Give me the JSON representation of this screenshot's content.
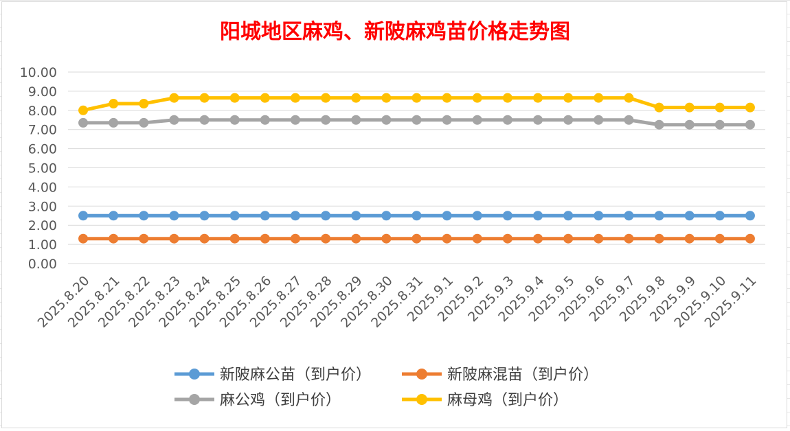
{
  "chart_data": {
    "type": "line",
    "title": "阳城地区麻鸡、新陂麻鸡苗价格走势图",
    "xlabel": "",
    "ylabel": "",
    "ylim": [
      0,
      10
    ],
    "yticks": [
      "0.00",
      "1.00",
      "2.00",
      "3.00",
      "4.00",
      "5.00",
      "6.00",
      "7.00",
      "8.00",
      "9.00",
      "10.00"
    ],
    "categories": [
      "2025.8.20",
      "2025.8.21",
      "2025.8.22",
      "2025.8.23",
      "2025.8.24",
      "2025.8.25",
      "2025.8.26",
      "2025.8.27",
      "2025.8.28",
      "2025.8.29",
      "2025.8.30",
      "2025.8.31",
      "2025.9.1",
      "2025.9.2",
      "2025.9.3",
      "2025.9.4",
      "2025.9.5",
      "2025.9.6",
      "2025.9.7",
      "2025.9.8",
      "2025.9.9",
      "2025.9.10",
      "2025.9.11"
    ],
    "grid": true,
    "legend_position": "bottom",
    "series": [
      {
        "name": "新陂麻公苗（到户价）",
        "color": "#5b9bd5",
        "values": [
          2.5,
          2.5,
          2.5,
          2.5,
          2.5,
          2.5,
          2.5,
          2.5,
          2.5,
          2.5,
          2.5,
          2.5,
          2.5,
          2.5,
          2.5,
          2.5,
          2.5,
          2.5,
          2.5,
          2.5,
          2.5,
          2.5,
          2.5
        ]
      },
      {
        "name": "新陂麻混苗（到户价）",
        "color": "#ed7d31",
        "values": [
          1.3,
          1.3,
          1.3,
          1.3,
          1.3,
          1.3,
          1.3,
          1.3,
          1.3,
          1.3,
          1.3,
          1.3,
          1.3,
          1.3,
          1.3,
          1.3,
          1.3,
          1.3,
          1.3,
          1.3,
          1.3,
          1.3,
          1.3
        ]
      },
      {
        "name": "麻公鸡（到户价）",
        "color": "#a5a5a5",
        "values": [
          7.35,
          7.35,
          7.35,
          7.5,
          7.5,
          7.5,
          7.5,
          7.5,
          7.5,
          7.5,
          7.5,
          7.5,
          7.5,
          7.5,
          7.5,
          7.5,
          7.5,
          7.5,
          7.5,
          7.25,
          7.25,
          7.25,
          7.25
        ]
      },
      {
        "name": "麻母鸡（到户价）",
        "color": "#ffc000",
        "values": [
          8.0,
          8.35,
          8.35,
          8.65,
          8.65,
          8.65,
          8.65,
          8.65,
          8.65,
          8.65,
          8.65,
          8.65,
          8.65,
          8.65,
          8.65,
          8.65,
          8.65,
          8.65,
          8.65,
          8.15,
          8.15,
          8.15,
          8.15
        ]
      }
    ]
  },
  "colors": {
    "title": "#ff0000",
    "grid": "#d9d9d9",
    "tick_text": "#595959"
  }
}
